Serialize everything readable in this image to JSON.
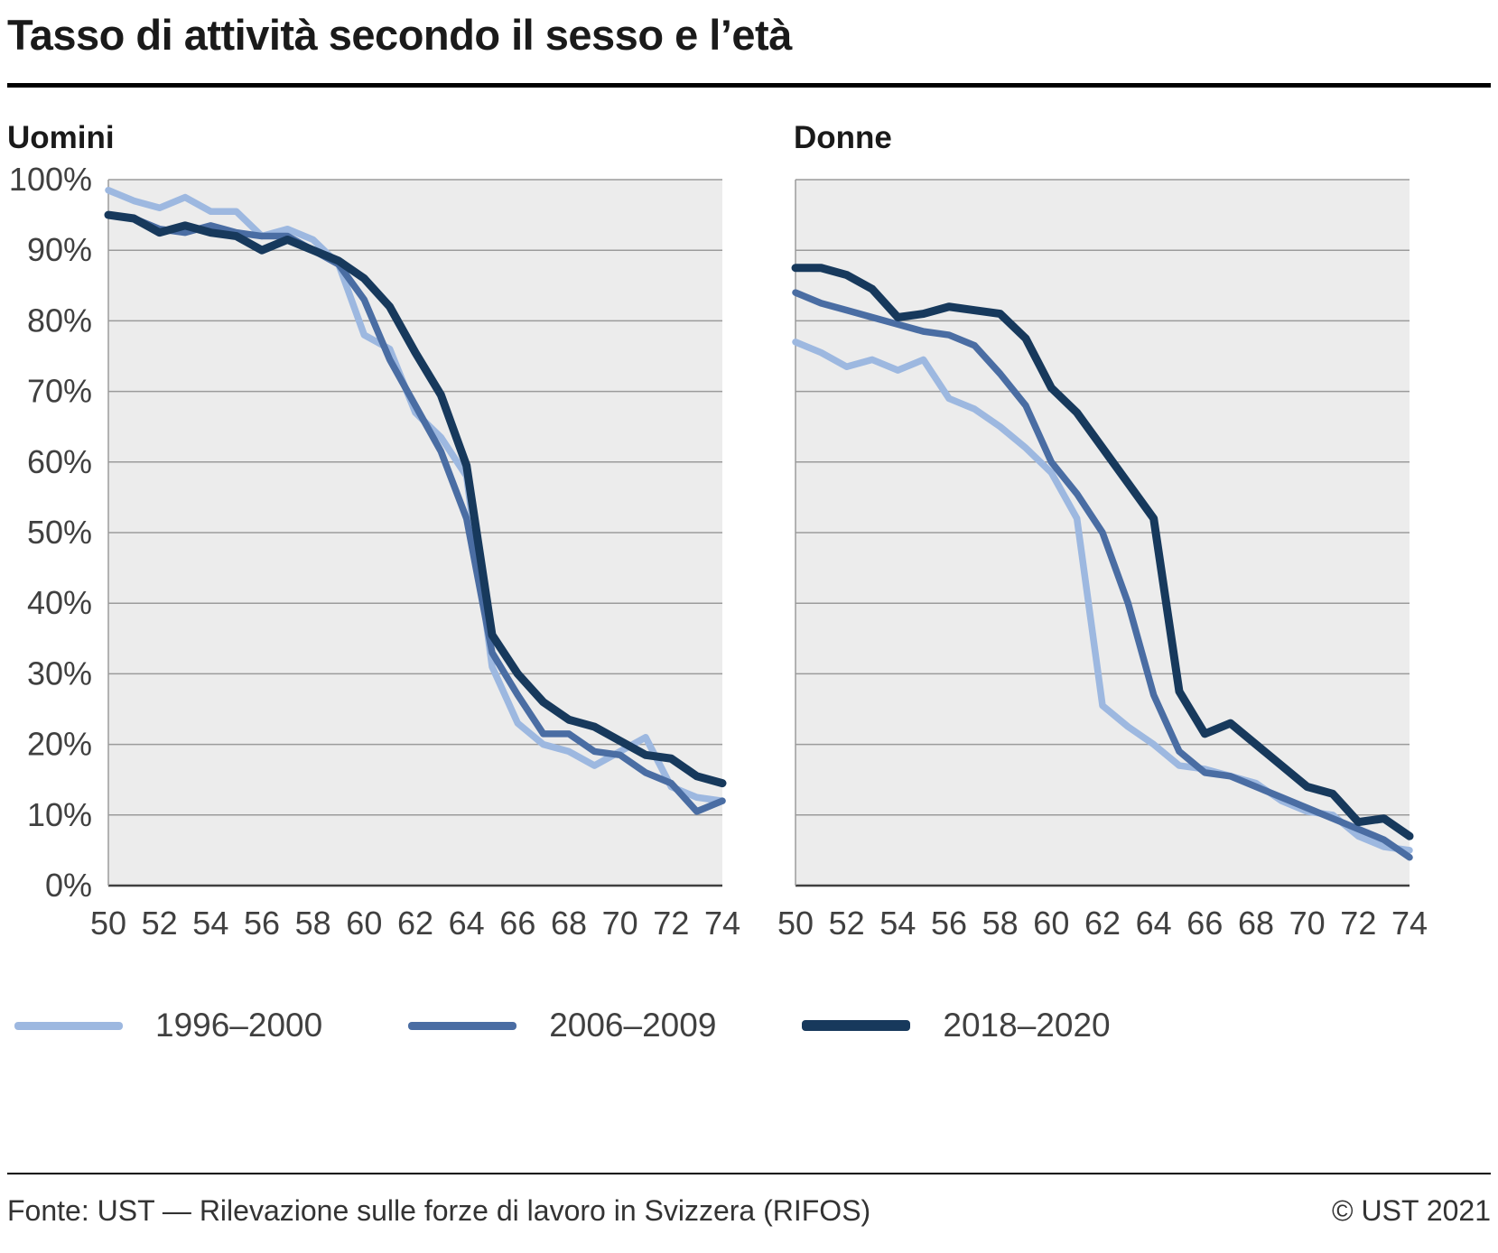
{
  "title": "Tasso di attività secondo il sesso e l’età",
  "axes": {
    "yticks": [
      "100%",
      "90%",
      "80%",
      "70%",
      "60%",
      "50%",
      "40%",
      "30%",
      "20%",
      "10%",
      "0%"
    ],
    "xticks": [
      50,
      52,
      54,
      56,
      58,
      60,
      62,
      64,
      66,
      68,
      70,
      72,
      74
    ]
  },
  "legend": {
    "items": [
      {
        "label": "1996–2000",
        "color": "#9db8e0"
      },
      {
        "label": "2006–2009",
        "color": "#4a6da3"
      },
      {
        "label": "2018–2020",
        "color": "#17395c"
      }
    ]
  },
  "footer": {
    "source": "Fonte: UST — Rilevazione sulle forze di lavoro in Svizzera (RIFOS)",
    "copyright": "© UST 2021"
  },
  "chart_data": [
    {
      "type": "line",
      "title": "Uomini",
      "x": [
        50,
        51,
        52,
        53,
        54,
        55,
        56,
        57,
        58,
        59,
        60,
        61,
        62,
        63,
        64,
        65,
        66,
        67,
        68,
        69,
        70,
        71,
        72,
        73,
        74
      ],
      "ylim": [
        0,
        100
      ],
      "grid": true,
      "legend_position": "bottom",
      "series": [
        {
          "name": "1996–2000",
          "color": "#9db8e0",
          "values": [
            98.5,
            97,
            96,
            97.5,
            95.5,
            95.5,
            92,
            93,
            91.5,
            88,
            78,
            76,
            67,
            63.5,
            58,
            31,
            23,
            20,
            19,
            17,
            19,
            21,
            14,
            12.5,
            12
          ]
        },
        {
          "name": "2006–2009",
          "color": "#4a6da3",
          "values": [
            95,
            94.5,
            93,
            92.5,
            93.5,
            92.5,
            92,
            92,
            90,
            88,
            83,
            74.5,
            68,
            61.5,
            52,
            33,
            27,
            21.5,
            21.5,
            19,
            18.5,
            16,
            14.5,
            10.5,
            12
          ]
        },
        {
          "name": "2018–2020",
          "color": "#17395c",
          "values": [
            95,
            94.5,
            92.5,
            93.5,
            92.5,
            92,
            90,
            91.5,
            90,
            88.5,
            86,
            82,
            75.5,
            69.5,
            59.5,
            35.5,
            30,
            26,
            23.5,
            22.5,
            20.5,
            18.5,
            18,
            15.5,
            14.5
          ]
        }
      ]
    },
    {
      "type": "line",
      "title": "Donne",
      "x": [
        50,
        51,
        52,
        53,
        54,
        55,
        56,
        57,
        58,
        59,
        60,
        61,
        62,
        63,
        64,
        65,
        66,
        67,
        68,
        69,
        70,
        71,
        72,
        73,
        74
      ],
      "ylim": [
        0,
        100
      ],
      "grid": true,
      "legend_position": "bottom",
      "series": [
        {
          "name": "1996–2000",
          "color": "#9db8e0",
          "values": [
            77,
            75.5,
            73.5,
            74.5,
            73,
            74.5,
            69,
            67.5,
            65,
            62,
            58.5,
            52,
            25.5,
            22.5,
            20,
            17,
            16.5,
            15.5,
            14.5,
            12,
            10.5,
            10,
            7,
            5.5,
            5
          ]
        },
        {
          "name": "2006–2009",
          "color": "#4a6da3",
          "values": [
            84,
            82.5,
            81.5,
            80.5,
            79.5,
            78.5,
            78,
            76.5,
            72.5,
            68,
            60,
            55.5,
            50,
            40,
            27,
            19,
            16,
            15.5,
            14,
            12.5,
            11,
            9.5,
            8,
            6.5,
            4
          ]
        },
        {
          "name": "2018–2020",
          "color": "#17395c",
          "values": [
            87.5,
            87.5,
            86.5,
            84.5,
            80.5,
            81,
            82,
            81.5,
            81,
            77.5,
            70.5,
            67,
            62,
            57,
            52,
            27.5,
            21.5,
            23,
            20,
            17,
            14,
            13,
            9,
            9.5,
            7
          ]
        }
      ]
    }
  ]
}
